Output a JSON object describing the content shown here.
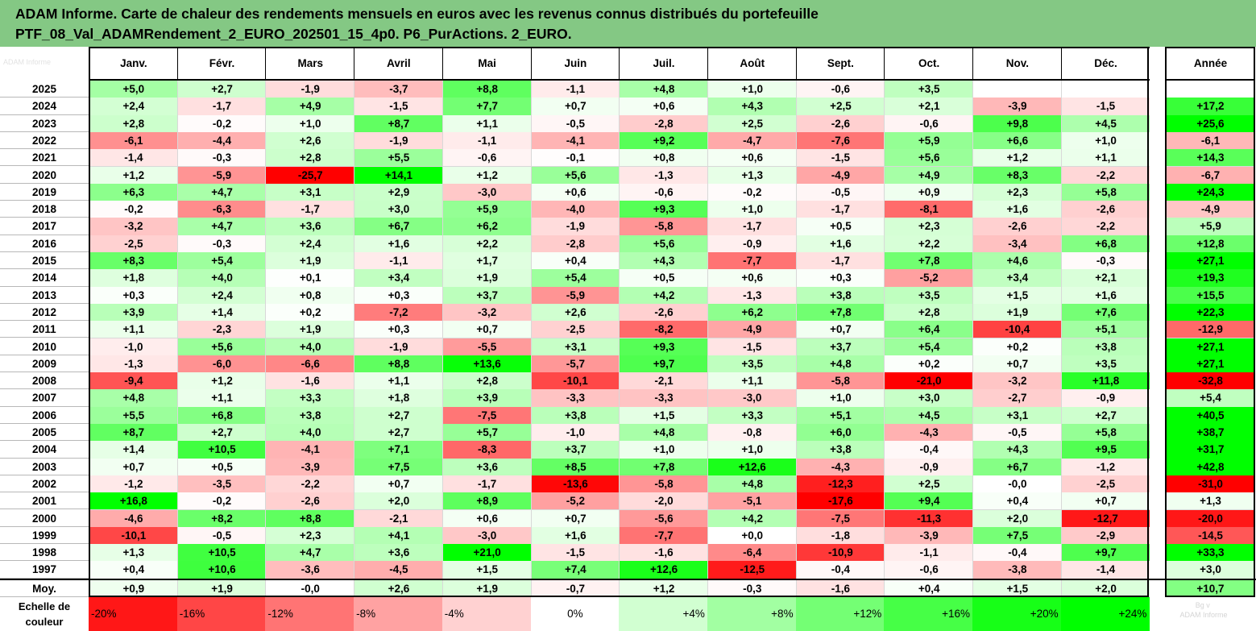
{
  "title": {
    "line1": "ADAM Informe. Carte de chaleur des rendements mensuels en euros avec les revenus connus distribués du portefeuille",
    "line2": "PTF_08_Val_ADAMRendement_2_EURO_202501_15_4p0. P6_PurActions. 2_EURO."
  },
  "corner_text": "ADAM Informe",
  "watermark": "Bg v \nADAM Informe",
  "colors": {
    "pos_max": "#00ff00",
    "neg_max": "#ff0000",
    "neutral": "#ffffff",
    "title_bg": "#84c884"
  },
  "chart_data": {
    "type": "heatmap",
    "columns": [
      "Janv.",
      "Févr.",
      "Mars",
      "Avril",
      "Mai",
      "Juin",
      "Juil.",
      "Août",
      "Sept.",
      "Oct.",
      "Nov.",
      "Déc."
    ],
    "annual_label": "Année",
    "rows": [
      {
        "year": "2025",
        "values": [
          "+5,0",
          "+2,7",
          "-1,9",
          "-3,7",
          "+8,8",
          "-1,1",
          "+4,8",
          "+1,0",
          "-0,6",
          "+3,5",
          "",
          ""
        ],
        "annual": ""
      },
      {
        "year": "2024",
        "values": [
          "+2,4",
          "-1,7",
          "+4,9",
          "-1,5",
          "+7,7",
          "+0,7",
          "+0,6",
          "+4,3",
          "+2,5",
          "+2,1",
          "-3,9",
          "-1,5"
        ],
        "annual": "+17,2"
      },
      {
        "year": "2023",
        "values": [
          "+2,8",
          "-0,2",
          "+1,0",
          "+8,7",
          "+1,1",
          "-0,5",
          "-2,8",
          "+2,5",
          "-2,6",
          "-0,6",
          "+9,8",
          "+4,5"
        ],
        "annual": "+25,6"
      },
      {
        "year": "2022",
        "values": [
          "-6,1",
          "-4,4",
          "+2,6",
          "-1,9",
          "-1,1",
          "-4,1",
          "+9,2",
          "-4,7",
          "-7,6",
          "+5,9",
          "+6,6",
          "+1,0"
        ],
        "annual": "-6,1"
      },
      {
        "year": "2021",
        "values": [
          "-1,4",
          "-0,3",
          "+2,8",
          "+5,5",
          "-0,6",
          "-0,1",
          "+0,8",
          "+0,6",
          "-1,5",
          "+5,6",
          "+1,2",
          "+1,1"
        ],
        "annual": "+14,3"
      },
      {
        "year": "2020",
        "values": [
          "+1,2",
          "-5,9",
          "-25,7",
          "+14,1",
          "+1,2",
          "+5,6",
          "-1,3",
          "+1,3",
          "-4,9",
          "+4,9",
          "+8,3",
          "-2,2"
        ],
        "annual": "-6,7"
      },
      {
        "year": "2019",
        "values": [
          "+6,3",
          "+4,7",
          "+3,1",
          "+2,9",
          "-3,0",
          "+0,6",
          "-0,6",
          "-0,2",
          "-0,5",
          "+0,9",
          "+2,3",
          "+5,8"
        ],
        "annual": "+24,3"
      },
      {
        "year": "2018",
        "values": [
          "-0,2",
          "-6,3",
          "-1,7",
          "+3,0",
          "+5,9",
          "-4,0",
          "+9,3",
          "+1,0",
          "-1,7",
          "-8,1",
          "+1,6",
          "-2,6"
        ],
        "annual": "-4,9"
      },
      {
        "year": "2017",
        "values": [
          "-3,2",
          "+4,7",
          "+3,6",
          "+6,7",
          "+6,2",
          "-1,9",
          "-5,8",
          "-1,7",
          "+0,5",
          "+2,3",
          "-2,6",
          "-2,2"
        ],
        "annual": "+5,9"
      },
      {
        "year": "2016",
        "values": [
          "-2,5",
          "-0,3",
          "+2,4",
          "+1,6",
          "+2,2",
          "-2,8",
          "+5,6",
          "-0,9",
          "+1,6",
          "+2,2",
          "-3,4",
          "+6,8"
        ],
        "annual": "+12,8"
      },
      {
        "year": "2015",
        "values": [
          "+8,3",
          "+5,4",
          "+1,9",
          "-1,1",
          "+1,7",
          "+0,4",
          "+4,3",
          "-7,7",
          "-1,7",
          "+7,8",
          "+4,6",
          "-0,3"
        ],
        "annual": "+27,1"
      },
      {
        "year": "2014",
        "values": [
          "+1,8",
          "+4,0",
          "+0,1",
          "+3,4",
          "+1,9",
          "+5,4",
          "+0,5",
          "+0,6",
          "+0,3",
          "-5,2",
          "+3,4",
          "+2,1"
        ],
        "annual": "+19,3"
      },
      {
        "year": "2013",
        "values": [
          "+0,3",
          "+2,4",
          "+0,8",
          "+0,3",
          "+3,7",
          "-5,9",
          "+4,2",
          "-1,3",
          "+3,8",
          "+3,5",
          "+1,5",
          "+1,6"
        ],
        "annual": "+15,5"
      },
      {
        "year": "2012",
        "values": [
          "+3,9",
          "+1,4",
          "+0,2",
          "-7,2",
          "-3,2",
          "+2,6",
          "-2,6",
          "+6,2",
          "+7,8",
          "+2,8",
          "+1,9",
          "+7,6"
        ],
        "annual": "+22,3"
      },
      {
        "year": "2011",
        "values": [
          "+1,1",
          "-2,3",
          "+1,9",
          "+0,3",
          "+0,7",
          "-2,5",
          "-8,2",
          "-4,9",
          "+0,7",
          "+6,4",
          "-10,4",
          "+5,1"
        ],
        "annual": "-12,9"
      },
      {
        "year": "2010",
        "values": [
          "-1,0",
          "+5,6",
          "+4,0",
          "-1,9",
          "-5,5",
          "+3,1",
          "+9,3",
          "-1,5",
          "+3,7",
          "+5,4",
          "+0,2",
          "+3,8"
        ],
        "annual": "+27,1"
      },
      {
        "year": "2009",
        "values": [
          "-1,3",
          "-6,0",
          "-6,6",
          "+8,8",
          "+13,6",
          "-5,7",
          "+9,7",
          "+3,5",
          "+4,8",
          "+0,2",
          "+0,7",
          "+3,5"
        ],
        "annual": "+27,1"
      },
      {
        "year": "2008",
        "values": [
          "-9,4",
          "+1,2",
          "-1,6",
          "+1,1",
          "+2,8",
          "-10,1",
          "-2,1",
          "+1,1",
          "-5,8",
          "-21,0",
          "-3,2",
          "+11,8"
        ],
        "annual": "-32,8"
      },
      {
        "year": "2007",
        "values": [
          "+4,8",
          "+1,1",
          "+3,3",
          "+1,8",
          "+3,9",
          "-3,3",
          "-3,3",
          "-3,0",
          "+1,0",
          "+3,0",
          "-2,7",
          "-0,9"
        ],
        "annual": "+5,4"
      },
      {
        "year": "2006",
        "values": [
          "+5,5",
          "+6,8",
          "+3,8",
          "+2,7",
          "-7,5",
          "+3,8",
          "+1,5",
          "+3,3",
          "+5,1",
          "+4,5",
          "+3,1",
          "+2,7"
        ],
        "annual": "+40,5"
      },
      {
        "year": "2005",
        "values": [
          "+8,7",
          "+2,7",
          "+4,0",
          "+2,7",
          "+5,7",
          "-1,0",
          "+4,8",
          "-0,8",
          "+6,0",
          "-4,3",
          "-0,5",
          "+5,8"
        ],
        "annual": "+38,7"
      },
      {
        "year": "2004",
        "values": [
          "+1,4",
          "+10,5",
          "-4,1",
          "+7,1",
          "-8,3",
          "+3,7",
          "+1,0",
          "+1,0",
          "+3,8",
          "-0,4",
          "+4,3",
          "+9,5"
        ],
        "annual": "+31,7"
      },
      {
        "year": "2003",
        "values": [
          "+0,7",
          "+0,5",
          "-3,9",
          "+7,5",
          "+3,6",
          "+8,5",
          "+7,8",
          "+12,6",
          "-4,3",
          "-0,9",
          "+6,7",
          "-1,2"
        ],
        "annual": "+42,8"
      },
      {
        "year": "2002",
        "values": [
          "-1,2",
          "-3,5",
          "-2,2",
          "+0,7",
          "-1,7",
          "-13,6",
          "-5,8",
          "+4,8",
          "-12,3",
          "+2,5",
          "-0,0",
          "-2,5"
        ],
        "annual": "-31,0"
      },
      {
        "year": "2001",
        "values": [
          "+16,8",
          "-0,2",
          "-2,6",
          "+2,0",
          "+8,9",
          "-5,2",
          "-2,0",
          "-5,1",
          "-17,6",
          "+9,4",
          "+0,4",
          "+0,7"
        ],
        "annual": "+1,3"
      },
      {
        "year": "2000",
        "values": [
          "-4,6",
          "+8,2",
          "+8,8",
          "-2,1",
          "+0,6",
          "+0,7",
          "-5,6",
          "+4,2",
          "-7,5",
          "-11,3",
          "+2,0",
          "-12,7"
        ],
        "annual": "-20,0"
      },
      {
        "year": "1999",
        "values": [
          "-10,1",
          "-0,5",
          "+2,3",
          "+4,1",
          "-3,0",
          "+1,6",
          "-7,7",
          "+0,0",
          "-1,8",
          "-3,9",
          "+7,5",
          "-2,9"
        ],
        "annual": "-14,5"
      },
      {
        "year": "1998",
        "values": [
          "+1,3",
          "+10,5",
          "+4,7",
          "+3,6",
          "+21,0",
          "-1,5",
          "-1,6",
          "-6,4",
          "-10,9",
          "-1,1",
          "-0,4",
          "+9,7"
        ],
        "annual": "+33,3"
      },
      {
        "year": "1997",
        "values": [
          "+0,4",
          "+10,6",
          "-3,6",
          "-4,5",
          "+1,5",
          "+7,4",
          "+12,6",
          "-12,5",
          "-0,4",
          "-0,6",
          "-3,8",
          "-1,4"
        ],
        "annual": "+3,0"
      }
    ],
    "average": {
      "label": "Moy.",
      "values": [
        "+0,9",
        "+1,9",
        "-0,0",
        "+2,6",
        "+1,9",
        "-0,7",
        "+1,2",
        "-0,3",
        "-1,6",
        "+0,4",
        "+1,5",
        "+2,0"
      ],
      "annual": "+10,7"
    },
    "legend": {
      "label_line1": "Echelle de",
      "label_line2": "couleur",
      "stops": [
        "-20%",
        "-16%",
        "-12%",
        "-8%",
        "-4%",
        "0%",
        "+4%",
        "+8%",
        "+12%",
        "+16%",
        "+20%",
        "+24%"
      ],
      "stop_values": [
        -20,
        -16,
        -12,
        -8,
        -4,
        0,
        4,
        8,
        12,
        16,
        20,
        24
      ]
    }
  }
}
